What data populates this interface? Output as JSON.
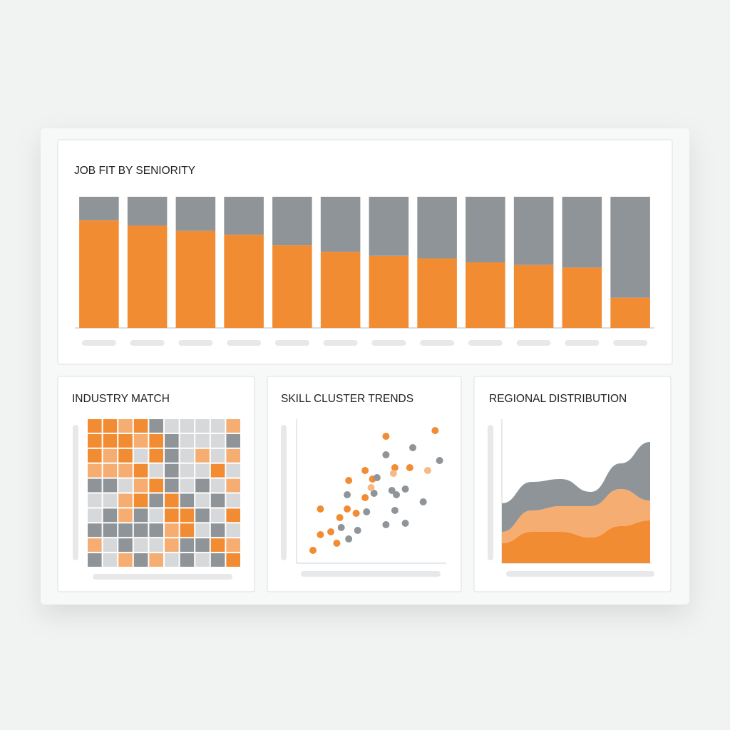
{
  "chart_data": [
    {
      "type": "bar",
      "stacked": true,
      "title": "JOB FIT BY SENIORITY",
      "categories": [
        null,
        null,
        null,
        null,
        null,
        null,
        null,
        null,
        null,
        null,
        null,
        null
      ],
      "ylim": [
        0,
        100
      ],
      "series": [
        {
          "color": "#f28c33",
          "values": [
            82,
            78,
            74,
            71,
            63,
            58,
            55,
            53,
            50,
            48,
            46,
            23
          ]
        },
        {
          "color": "#8f9499",
          "values": [
            18,
            22,
            26,
            29,
            37,
            42,
            45,
            47,
            50,
            52,
            54,
            77
          ]
        }
      ]
    },
    {
      "type": "heatmap",
      "title": "INDUSTRY MATCH",
      "colors": [
        "#8f9499",
        "#d6d8da",
        "#f6ad72",
        "#f28c33"
      ],
      "values": [
        [
          3,
          3,
          2,
          3,
          0,
          1,
          1,
          1,
          1,
          2
        ],
        [
          3,
          3,
          3,
          2,
          3,
          0,
          1,
          1,
          1,
          0
        ],
        [
          3,
          2,
          3,
          1,
          3,
          0,
          1,
          2,
          1,
          2
        ],
        [
          2,
          2,
          2,
          3,
          1,
          0,
          1,
          1,
          3,
          1
        ],
        [
          0,
          0,
          1,
          2,
          3,
          0,
          1,
          0,
          1,
          2
        ],
        [
          1,
          1,
          2,
          3,
          0,
          3,
          0,
          1,
          0,
          1
        ],
        [
          1,
          0,
          2,
          0,
          1,
          3,
          3,
          0,
          1,
          3
        ],
        [
          0,
          0,
          0,
          0,
          0,
          2,
          3,
          1,
          0,
          1
        ],
        [
          2,
          1,
          0,
          1,
          1,
          2,
          0,
          0,
          3,
          2
        ],
        [
          0,
          1,
          2,
          0,
          2,
          1,
          0,
          1,
          0,
          3
        ]
      ]
    },
    {
      "type": "scatter",
      "title": "SKILL CLUSTER TRENDS",
      "xlim": [
        0,
        100
      ],
      "ylim": [
        0,
        100
      ],
      "series": [
        {
          "color": "#f28c33",
          "x": [
            11,
            16,
            23,
            27,
            16,
            29,
            34,
            35,
            40,
            46,
            46,
            51,
            60,
            66,
            76,
            93
          ],
          "values": [
            9,
            20,
            22,
            14,
            38,
            32,
            38,
            58,
            35,
            46,
            65,
            59,
            89,
            67,
            67,
            93
          ]
        },
        {
          "color": "#8f9499",
          "x": [
            30,
            35,
            34,
            41,
            47,
            54,
            52,
            60,
            60,
            64,
            66,
            67,
            73,
            73,
            78,
            85,
            96
          ],
          "values": [
            25,
            17,
            48,
            23,
            36,
            60,
            49,
            76,
            27,
            51,
            37,
            48,
            52,
            28,
            81,
            43,
            72
          ]
        },
        {
          "color": "#f6b988",
          "x": [
            50,
            65,
            88
          ],
          "values": [
            53,
            63,
            65
          ]
        }
      ]
    },
    {
      "type": "area",
      "stacked": true,
      "title": "REGIONAL DISTRIBUTION",
      "x": [
        0,
        20,
        40,
        60,
        80,
        100
      ],
      "xlim": [
        0,
        100
      ],
      "ylim": [
        0,
        100
      ],
      "series": [
        {
          "color": "#f28c33",
          "values": [
            14,
            22,
            22,
            18,
            26,
            30
          ]
        },
        {
          "color": "#f6ad72",
          "values": [
            8,
            15,
            18,
            22,
            26,
            14
          ]
        },
        {
          "color": "#8f9499",
          "values": [
            20,
            20,
            19,
            10,
            18,
            41
          ]
        }
      ]
    }
  ]
}
